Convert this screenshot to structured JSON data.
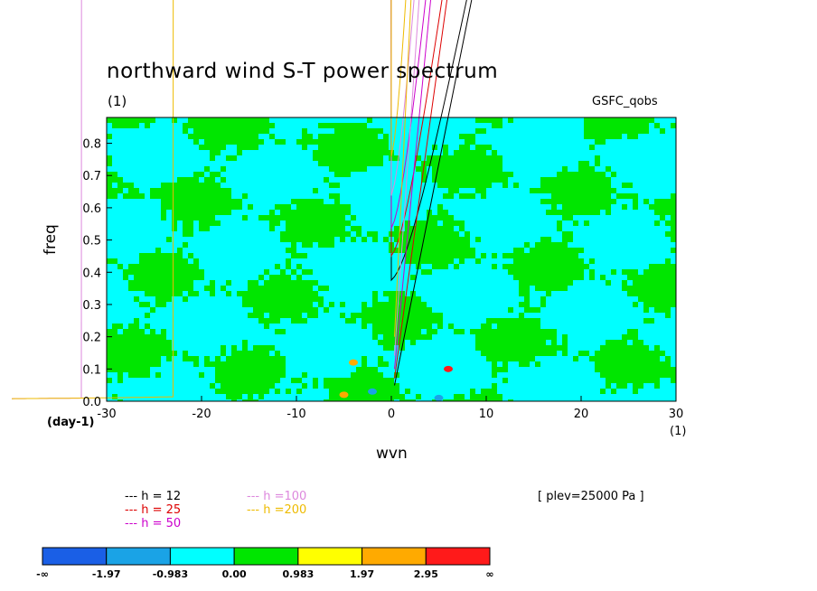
{
  "title": "northward wind S-T power spectrum",
  "subtitle": "(1)",
  "source_label": "GSFC_qobs",
  "level_label": "[ plev=25000 Pa ]",
  "chart_data": {
    "type": "heatmap",
    "xlabel": "wvn",
    "ylabel": "freq",
    "x_unit": "(1)",
    "y_unit": "(day-1)",
    "xlim": [
      -30,
      30
    ],
    "ylim": [
      0,
      0.88
    ],
    "x_ticks": [
      -30,
      -20,
      -10,
      0,
      10,
      20,
      30
    ],
    "y_ticks": [
      0.0,
      0.1,
      0.2,
      0.3,
      0.4,
      0.5,
      0.6,
      0.7,
      0.8
    ],
    "x_tick_labels": [
      "-30",
      "-20",
      "-10",
      "0",
      "10",
      "20",
      "30"
    ],
    "y_tick_labels": [
      "0.0",
      "0.1",
      "0.2",
      "0.3",
      "0.4",
      "0.5",
      "0.6",
      "0.7",
      "0.8"
    ],
    "colorbar": {
      "labels": [
        "-∞",
        "-1.97",
        "-0.983",
        "0.00",
        "0.983",
        "1.97",
        "2.95",
        "∞"
      ],
      "colors": [
        "#1a5fe6",
        "#1aa3e6",
        "#00ffff",
        "#00e600",
        "#ffff00",
        "#ffaa00",
        "#ff1a1a"
      ]
    },
    "dispersion_curves": [
      {
        "name": "h = 12",
        "color": "#000000",
        "h": 12
      },
      {
        "name": "h = 25",
        "color": "#dd0000",
        "h": 25
      },
      {
        "name": "h = 50",
        "color": "#cc00cc",
        "h": 50
      },
      {
        "name": "h =100",
        "color": "#dd88dd",
        "h": 100
      },
      {
        "name": "h =200",
        "color": "#eebb00",
        "h": 200
      }
    ],
    "hotspots": [
      {
        "x": 6,
        "y": 0.1,
        "level": 6
      },
      {
        "x": -5,
        "y": 0.02,
        "level": 5
      },
      {
        "x": 5,
        "y": 0.01,
        "level": 1
      },
      {
        "x": -2,
        "y": 0.03,
        "level": 1
      },
      {
        "x": -4,
        "y": 0.12,
        "level": 5
      }
    ]
  }
}
